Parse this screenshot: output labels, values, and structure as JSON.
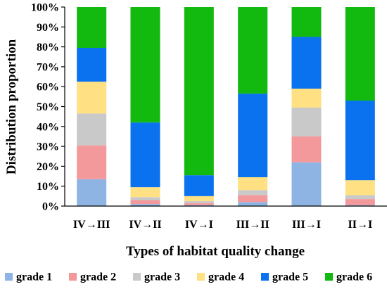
{
  "chart_data": {
    "type": "bar",
    "stacked": true,
    "normalized": true,
    "title": "",
    "xlabel": "Types of habitat quality change",
    "ylabel": "Distribution proportion",
    "ylim": [
      0,
      100
    ],
    "y_ticks": [
      "0%",
      "10%",
      "20%",
      "30%",
      "40%",
      "50%",
      "60%",
      "70%",
      "80%",
      "90%",
      "100%"
    ],
    "categories": [
      "IV→III",
      "IV→II",
      "IV→I",
      "III→II",
      "III→I",
      "II→I"
    ],
    "grid": false,
    "legend_position": "bottom",
    "series": [
      {
        "name": "grade 1",
        "color": "#8eb4e3",
        "values": [
          13.5,
          1.0,
          0.5,
          2.0,
          22.0,
          0.5
        ]
      },
      {
        "name": "grade 2",
        "color": "#f4999b",
        "values": [
          17.0,
          2.0,
          1.0,
          3.5,
          13.0,
          3.0
        ]
      },
      {
        "name": "grade 3",
        "color": "#c9c9c9",
        "values": [
          16.0,
          1.5,
          1.0,
          2.5,
          14.5,
          2.0
        ]
      },
      {
        "name": "grade 4",
        "color": "#ffe083",
        "values": [
          16.0,
          5.0,
          2.5,
          6.5,
          9.5,
          7.5
        ]
      },
      {
        "name": "grade 5",
        "color": "#0a72ef",
        "values": [
          17.0,
          32.5,
          10.5,
          42.0,
          26.0,
          40.0
        ]
      },
      {
        "name": "grade 6",
        "color": "#12b90f",
        "values": [
          20.5,
          58.0,
          84.5,
          43.5,
          15.0,
          47.0
        ]
      }
    ]
  }
}
